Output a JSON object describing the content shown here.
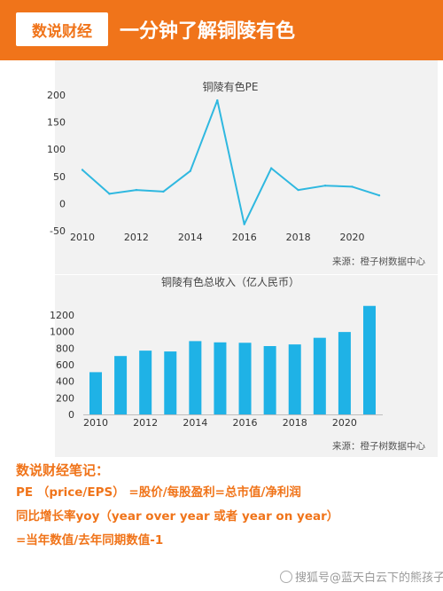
{
  "header": {
    "badge": "数说财经",
    "title": "一分钟了解铜陵有色"
  },
  "chart_data": [
    {
      "type": "line",
      "title": "铜陵有色PE",
      "source": "来源：橙子树数据中心",
      "x": [
        2010,
        2011,
        2012,
        2013,
        2014,
        2015,
        2016,
        2017,
        2018,
        2019,
        2020,
        2021
      ],
      "values": [
        62,
        18,
        25,
        22,
        60,
        190,
        -38,
        65,
        25,
        33,
        31,
        15
      ],
      "xticks": [
        "2010",
        "2012",
        "2014",
        "2016",
        "2018",
        "2020"
      ],
      "yticks": [
        "200",
        "150",
        "100",
        "50",
        "0",
        "-50"
      ],
      "ylim": [
        -50,
        200
      ],
      "color": "#2fb8e0"
    },
    {
      "type": "bar",
      "title": "铜陵有色总收入（亿人民币）",
      "source": "来源：橙子树数据中心",
      "x": [
        2010,
        2011,
        2012,
        2013,
        2014,
        2015,
        2016,
        2017,
        2018,
        2019,
        2020,
        2021
      ],
      "values": [
        510,
        705,
        770,
        760,
        885,
        870,
        865,
        825,
        845,
        925,
        995,
        1310
      ],
      "xticks": [
        "2010",
        "2012",
        "2014",
        "2016",
        "2018",
        "2020"
      ],
      "yticks": [
        "1200",
        "1000",
        "800",
        "600",
        "400",
        "200",
        "0"
      ],
      "ylim": [
        0,
        1350
      ],
      "color": "#1fb2e6"
    }
  ],
  "notes": {
    "title": "数说财经笔记：",
    "lines": [
      "PE （price/EPS） =股价/每股盈利=总市值/净利润",
      "同比增长率yoy（year over year 或者 year on year）",
      "=当年数值/去年同期数值-1"
    ]
  },
  "watermark": "搜狐号@蓝天白云下的熊孩子"
}
